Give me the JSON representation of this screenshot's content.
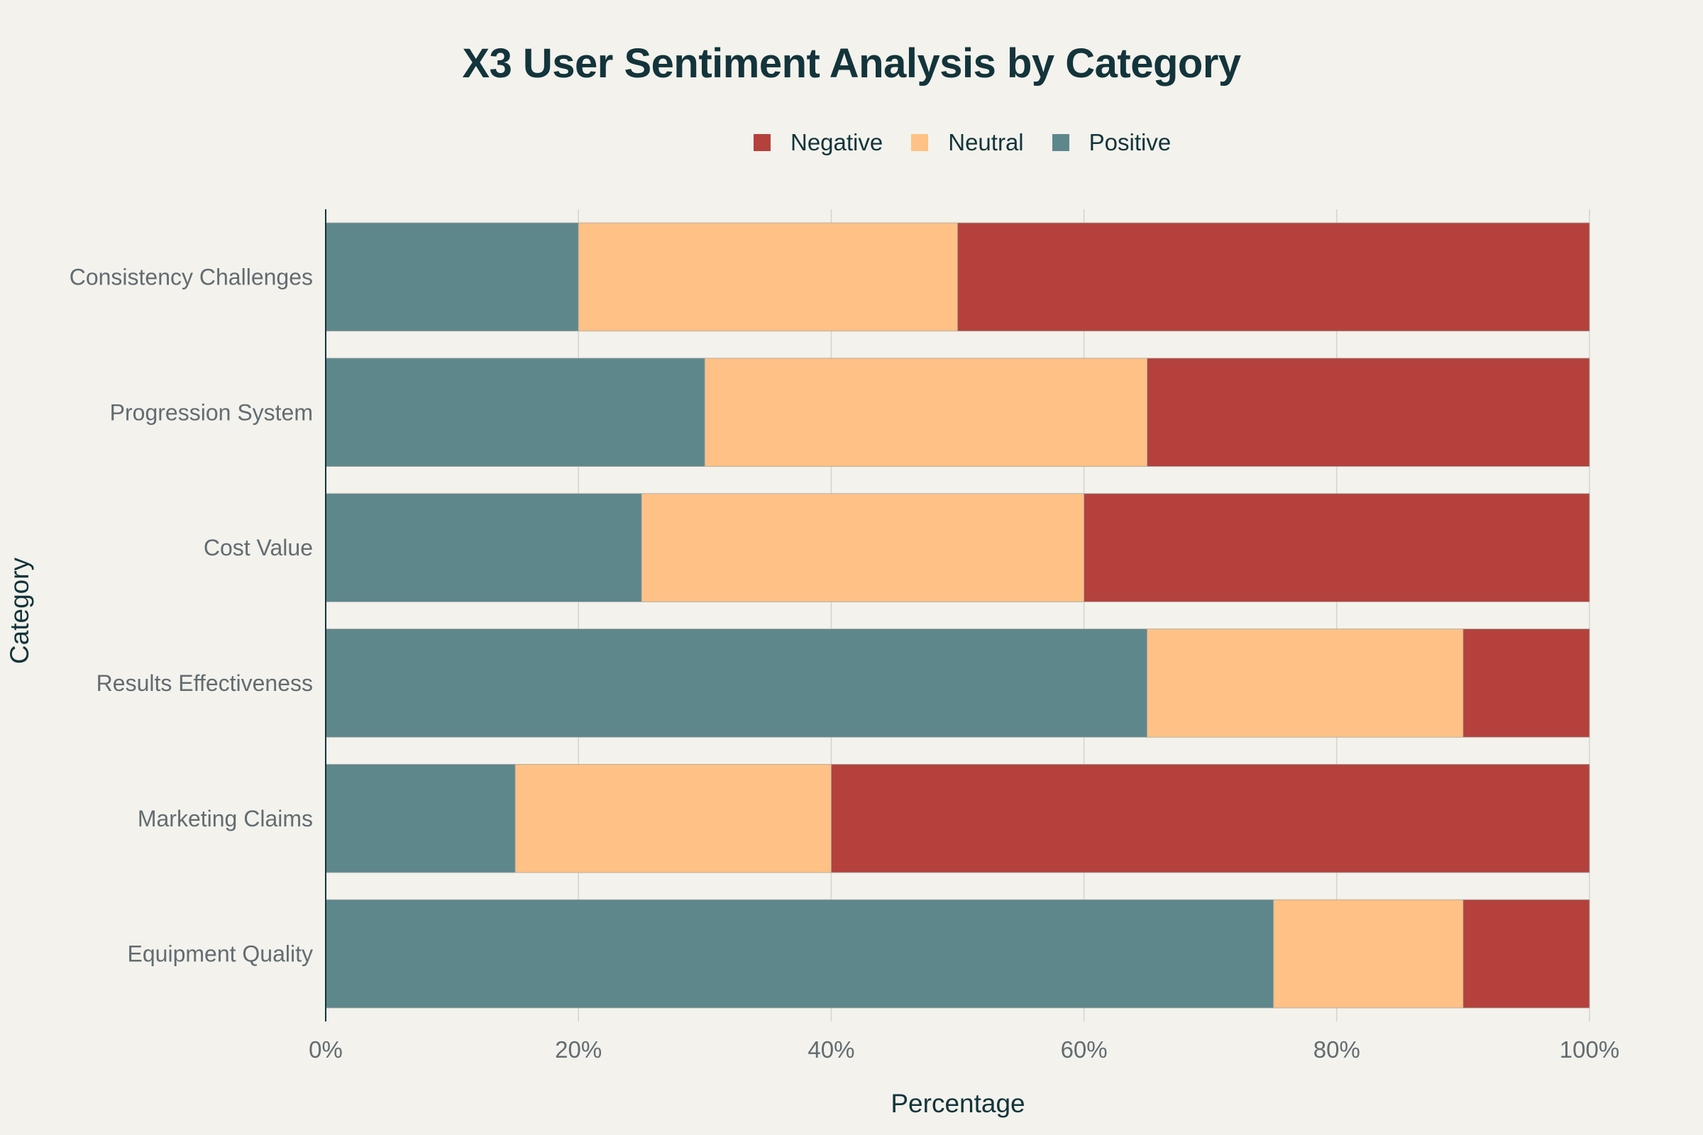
{
  "chart_data": {
    "type": "bar",
    "orientation": "horizontal",
    "stacked": true,
    "title": "X3 User Sentiment Analysis by Category",
    "xlabel": "Percentage",
    "ylabel": "Category",
    "xlim": [
      0,
      100
    ],
    "x_ticks": [
      "0%",
      "20%",
      "40%",
      "60%",
      "80%",
      "100%"
    ],
    "grid": true,
    "legend_position": "top-center",
    "legend_order": [
      "Negative",
      "Neutral",
      "Positive"
    ],
    "categories": [
      "Consistency Challenges",
      "Progression System",
      "Cost Value",
      "Results Effectiveness",
      "Marketing Claims",
      "Equipment Quality"
    ],
    "series": [
      {
        "name": "Positive",
        "color": "#5e878c",
        "values": [
          20,
          30,
          25,
          65,
          15,
          75
        ]
      },
      {
        "name": "Neutral",
        "color": "#ffc185",
        "values": [
          30,
          35,
          35,
          25,
          25,
          15
        ]
      },
      {
        "name": "Negative",
        "color": "#b4413c",
        "values": [
          50,
          35,
          40,
          10,
          60,
          10
        ]
      }
    ]
  }
}
